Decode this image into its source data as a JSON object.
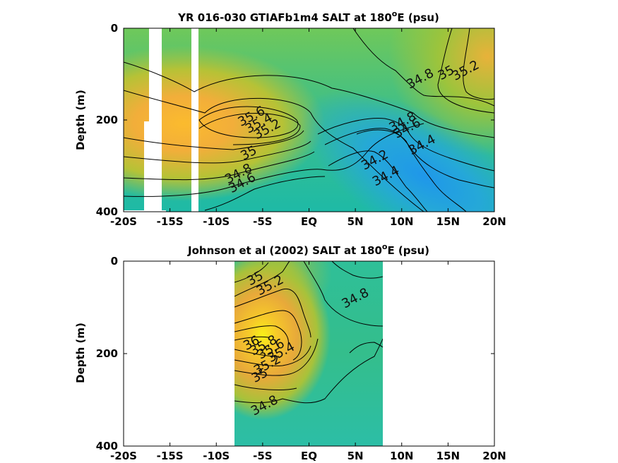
{
  "colors": {
    "fresh": "#1f9be8",
    "mid": "#2ec0a0",
    "salty": "#f7b632",
    "max": "#f5e61a"
  },
  "chart_data": [
    {
      "type": "heatmap",
      "title": "YR 016-030 GTIAFb1m4 SALT at 180",
      "title_sup": "o",
      "title_tail": "E (psu)",
      "ylabel": "Depth (m)",
      "xlim": [
        -20,
        20
      ],
      "ylim": [
        400,
        0
      ],
      "xticks": [
        -20,
        -15,
        -10,
        -5,
        0,
        5,
        10,
        15,
        20
      ],
      "xtick_labels": [
        "-20S",
        "-15S",
        "-10S",
        "-5S",
        "EQ",
        "5N",
        "10N",
        "15N",
        "20N"
      ],
      "yticks": [
        0,
        200,
        400
      ],
      "ytick_labels": [
        "0",
        "200",
        "400"
      ],
      "missing_columns_lat": [
        [
          -18.0,
          -16.7
        ],
        [
          -12.3,
          -11.7
        ]
      ],
      "contour_labels": [
        {
          "text": "35.6",
          "lat": -6.0,
          "depth": 200
        },
        {
          "text": "35.4",
          "lat": -5.2,
          "depth": 215
        },
        {
          "text": "35.2",
          "lat": -4.3,
          "depth": 228
        },
        {
          "text": "35",
          "lat": -6.3,
          "depth": 280
        },
        {
          "text": "34.8",
          "lat": -7.4,
          "depth": 325
        },
        {
          "text": "34.6",
          "lat": -7.0,
          "depth": 345
        },
        {
          "text": "34.8",
          "lat": 12.2,
          "depth": 118
        },
        {
          "text": "35",
          "lat": 15.0,
          "depth": 105
        },
        {
          "text": "35.2",
          "lat": 17.1,
          "depth": 100
        },
        {
          "text": "34.8",
          "lat": 10.3,
          "depth": 212
        },
        {
          "text": "34.6",
          "lat": 10.8,
          "depth": 226
        },
        {
          "text": "34.4",
          "lat": 12.4,
          "depth": 262
        },
        {
          "text": "34.2",
          "lat": 7.3,
          "depth": 295
        },
        {
          "text": "34.4",
          "lat": 8.5,
          "depth": 330
        }
      ]
    },
    {
      "type": "heatmap",
      "title": "Johnson et al (2002) SALT at 180",
      "title_sup": "o",
      "title_tail": "E (psu)",
      "ylabel": "Depth (m)",
      "xlim": [
        -20,
        20
      ],
      "ylim": [
        400,
        0
      ],
      "xticks": [
        -20,
        -15,
        -10,
        -5,
        0,
        5,
        10,
        15,
        20
      ],
      "xtick_labels": [
        "-20S",
        "-15S",
        "-10S",
        "-5S",
        "EQ",
        "5N",
        "10N",
        "15N",
        "20N"
      ],
      "yticks": [
        0,
        200,
        400
      ],
      "ytick_labels": [
        "0",
        "200",
        "400"
      ],
      "data_lat_range": [
        -8,
        8
      ],
      "contour_labels": [
        {
          "text": "35",
          "lat": -5.6,
          "depth": 45
        },
        {
          "text": "35.2",
          "lat": -4.0,
          "depth": 60
        },
        {
          "text": "34.8",
          "lat": 5.2,
          "depth": 88
        },
        {
          "text": "36",
          "lat": -6.0,
          "depth": 185
        },
        {
          "text": "35.8",
          "lat": -4.7,
          "depth": 190
        },
        {
          "text": "35.6",
          "lat": -3.9,
          "depth": 198
        },
        {
          "text": "35.4",
          "lat": -2.8,
          "depth": 205
        },
        {
          "text": "35.2",
          "lat": -4.3,
          "depth": 232
        },
        {
          "text": "35",
          "lat": -5.1,
          "depth": 255
        },
        {
          "text": "34.8",
          "lat": -4.6,
          "depth": 320
        }
      ]
    }
  ]
}
